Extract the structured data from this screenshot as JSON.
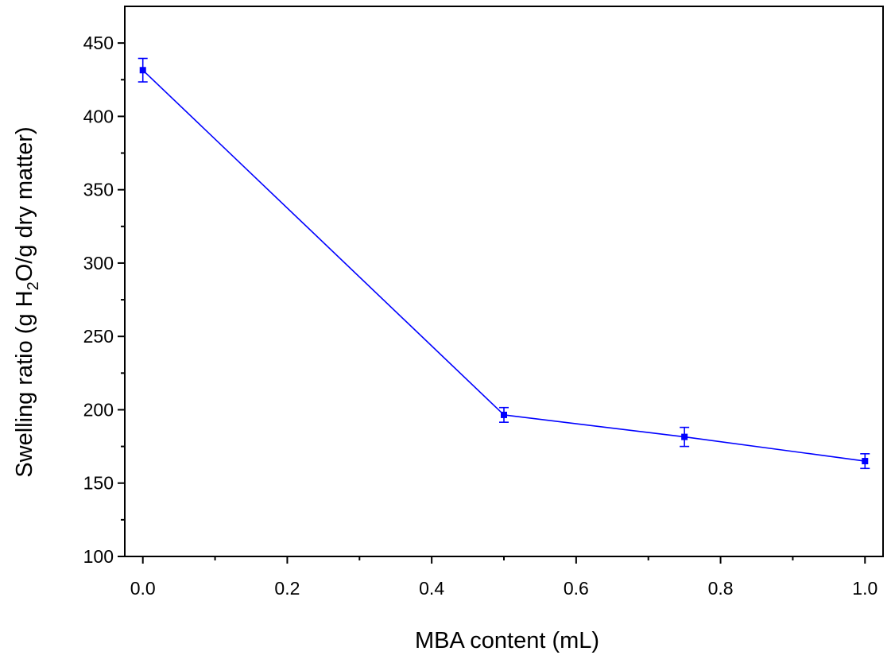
{
  "chart_data": {
    "type": "line",
    "title": "",
    "xlabel": "MBA content (mL)",
    "ylabel": {
      "prefix": "Swelling ratio (g H",
      "subscript": "2",
      "suffix": "O/g dry matter)"
    },
    "xlim": [
      -0.025,
      1.025
    ],
    "ylim": [
      100,
      475
    ],
    "x_ticks": [
      0.0,
      0.2,
      0.4,
      0.6,
      0.8,
      1.0
    ],
    "x_tick_labels": [
      "0.0",
      "0.2",
      "0.4",
      "0.6",
      "0.8",
      "1.0"
    ],
    "x_minor_ticks": [
      0.1,
      0.3,
      0.5,
      0.7,
      0.9
    ],
    "y_ticks": [
      100,
      150,
      200,
      250,
      300,
      350,
      400,
      450
    ],
    "y_tick_labels": [
      "100",
      "150",
      "200",
      "250",
      "300",
      "350",
      "400",
      "450"
    ],
    "y_minor_ticks": [
      125,
      175,
      225,
      275,
      325,
      375,
      425
    ],
    "grid": false,
    "legend": "none",
    "series": [
      {
        "color": "#0000ff",
        "marker": "square",
        "x": [
          0.0,
          0.5,
          0.75,
          1.0
        ],
        "y": [
          431.5,
          196.5,
          181.5,
          165
        ],
        "y_err": [
          8,
          5,
          6.5,
          5
        ]
      }
    ]
  }
}
